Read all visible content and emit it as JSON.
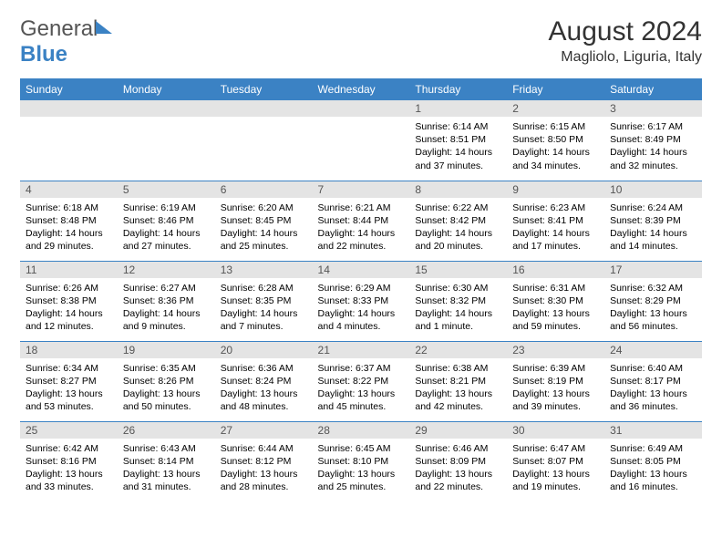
{
  "brand": {
    "part1": "General",
    "part2": "Blue"
  },
  "title": "August 2024",
  "location": "Magliolo, Liguria, Italy",
  "colors": {
    "header_bg": "#3b82c4",
    "header_text": "#ffffff",
    "daynum_bg": "#e4e4e4",
    "row_border": "#3b82c4",
    "page_bg": "#ffffff"
  },
  "day_labels": [
    "Sunday",
    "Monday",
    "Tuesday",
    "Wednesday",
    "Thursday",
    "Friday",
    "Saturday"
  ],
  "weeks": [
    [
      {
        "n": "",
        "sunrise": "",
        "sunset": "",
        "daylight": ""
      },
      {
        "n": "",
        "sunrise": "",
        "sunset": "",
        "daylight": ""
      },
      {
        "n": "",
        "sunrise": "",
        "sunset": "",
        "daylight": ""
      },
      {
        "n": "",
        "sunrise": "",
        "sunset": "",
        "daylight": ""
      },
      {
        "n": "1",
        "sunrise": "Sunrise: 6:14 AM",
        "sunset": "Sunset: 8:51 PM",
        "daylight": "Daylight: 14 hours and 37 minutes."
      },
      {
        "n": "2",
        "sunrise": "Sunrise: 6:15 AM",
        "sunset": "Sunset: 8:50 PM",
        "daylight": "Daylight: 14 hours and 34 minutes."
      },
      {
        "n": "3",
        "sunrise": "Sunrise: 6:17 AM",
        "sunset": "Sunset: 8:49 PM",
        "daylight": "Daylight: 14 hours and 32 minutes."
      }
    ],
    [
      {
        "n": "4",
        "sunrise": "Sunrise: 6:18 AM",
        "sunset": "Sunset: 8:48 PM",
        "daylight": "Daylight: 14 hours and 29 minutes."
      },
      {
        "n": "5",
        "sunrise": "Sunrise: 6:19 AM",
        "sunset": "Sunset: 8:46 PM",
        "daylight": "Daylight: 14 hours and 27 minutes."
      },
      {
        "n": "6",
        "sunrise": "Sunrise: 6:20 AM",
        "sunset": "Sunset: 8:45 PM",
        "daylight": "Daylight: 14 hours and 25 minutes."
      },
      {
        "n": "7",
        "sunrise": "Sunrise: 6:21 AM",
        "sunset": "Sunset: 8:44 PM",
        "daylight": "Daylight: 14 hours and 22 minutes."
      },
      {
        "n": "8",
        "sunrise": "Sunrise: 6:22 AM",
        "sunset": "Sunset: 8:42 PM",
        "daylight": "Daylight: 14 hours and 20 minutes."
      },
      {
        "n": "9",
        "sunrise": "Sunrise: 6:23 AM",
        "sunset": "Sunset: 8:41 PM",
        "daylight": "Daylight: 14 hours and 17 minutes."
      },
      {
        "n": "10",
        "sunrise": "Sunrise: 6:24 AM",
        "sunset": "Sunset: 8:39 PM",
        "daylight": "Daylight: 14 hours and 14 minutes."
      }
    ],
    [
      {
        "n": "11",
        "sunrise": "Sunrise: 6:26 AM",
        "sunset": "Sunset: 8:38 PM",
        "daylight": "Daylight: 14 hours and 12 minutes."
      },
      {
        "n": "12",
        "sunrise": "Sunrise: 6:27 AM",
        "sunset": "Sunset: 8:36 PM",
        "daylight": "Daylight: 14 hours and 9 minutes."
      },
      {
        "n": "13",
        "sunrise": "Sunrise: 6:28 AM",
        "sunset": "Sunset: 8:35 PM",
        "daylight": "Daylight: 14 hours and 7 minutes."
      },
      {
        "n": "14",
        "sunrise": "Sunrise: 6:29 AM",
        "sunset": "Sunset: 8:33 PM",
        "daylight": "Daylight: 14 hours and 4 minutes."
      },
      {
        "n": "15",
        "sunrise": "Sunrise: 6:30 AM",
        "sunset": "Sunset: 8:32 PM",
        "daylight": "Daylight: 14 hours and 1 minute."
      },
      {
        "n": "16",
        "sunrise": "Sunrise: 6:31 AM",
        "sunset": "Sunset: 8:30 PM",
        "daylight": "Daylight: 13 hours and 59 minutes."
      },
      {
        "n": "17",
        "sunrise": "Sunrise: 6:32 AM",
        "sunset": "Sunset: 8:29 PM",
        "daylight": "Daylight: 13 hours and 56 minutes."
      }
    ],
    [
      {
        "n": "18",
        "sunrise": "Sunrise: 6:34 AM",
        "sunset": "Sunset: 8:27 PM",
        "daylight": "Daylight: 13 hours and 53 minutes."
      },
      {
        "n": "19",
        "sunrise": "Sunrise: 6:35 AM",
        "sunset": "Sunset: 8:26 PM",
        "daylight": "Daylight: 13 hours and 50 minutes."
      },
      {
        "n": "20",
        "sunrise": "Sunrise: 6:36 AM",
        "sunset": "Sunset: 8:24 PM",
        "daylight": "Daylight: 13 hours and 48 minutes."
      },
      {
        "n": "21",
        "sunrise": "Sunrise: 6:37 AM",
        "sunset": "Sunset: 8:22 PM",
        "daylight": "Daylight: 13 hours and 45 minutes."
      },
      {
        "n": "22",
        "sunrise": "Sunrise: 6:38 AM",
        "sunset": "Sunset: 8:21 PM",
        "daylight": "Daylight: 13 hours and 42 minutes."
      },
      {
        "n": "23",
        "sunrise": "Sunrise: 6:39 AM",
        "sunset": "Sunset: 8:19 PM",
        "daylight": "Daylight: 13 hours and 39 minutes."
      },
      {
        "n": "24",
        "sunrise": "Sunrise: 6:40 AM",
        "sunset": "Sunset: 8:17 PM",
        "daylight": "Daylight: 13 hours and 36 minutes."
      }
    ],
    [
      {
        "n": "25",
        "sunrise": "Sunrise: 6:42 AM",
        "sunset": "Sunset: 8:16 PM",
        "daylight": "Daylight: 13 hours and 33 minutes."
      },
      {
        "n": "26",
        "sunrise": "Sunrise: 6:43 AM",
        "sunset": "Sunset: 8:14 PM",
        "daylight": "Daylight: 13 hours and 31 minutes."
      },
      {
        "n": "27",
        "sunrise": "Sunrise: 6:44 AM",
        "sunset": "Sunset: 8:12 PM",
        "daylight": "Daylight: 13 hours and 28 minutes."
      },
      {
        "n": "28",
        "sunrise": "Sunrise: 6:45 AM",
        "sunset": "Sunset: 8:10 PM",
        "daylight": "Daylight: 13 hours and 25 minutes."
      },
      {
        "n": "29",
        "sunrise": "Sunrise: 6:46 AM",
        "sunset": "Sunset: 8:09 PM",
        "daylight": "Daylight: 13 hours and 22 minutes."
      },
      {
        "n": "30",
        "sunrise": "Sunrise: 6:47 AM",
        "sunset": "Sunset: 8:07 PM",
        "daylight": "Daylight: 13 hours and 19 minutes."
      },
      {
        "n": "31",
        "sunrise": "Sunrise: 6:49 AM",
        "sunset": "Sunset: 8:05 PM",
        "daylight": "Daylight: 13 hours and 16 minutes."
      }
    ]
  ]
}
